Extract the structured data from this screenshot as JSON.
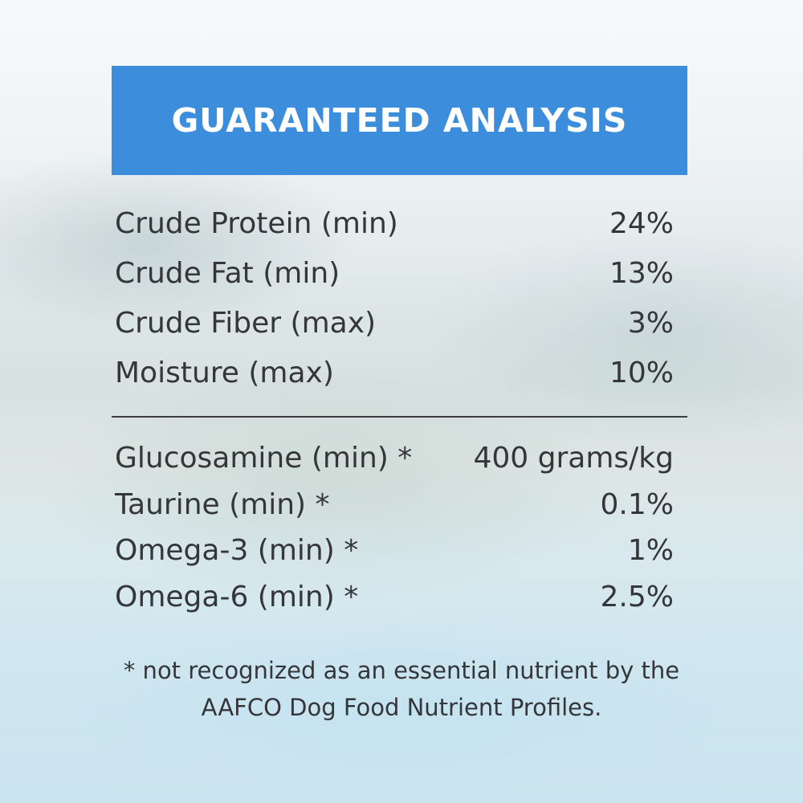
{
  "header": {
    "title": "GUARANTEED ANALYSIS",
    "background_color": "#3d8ddd"
  },
  "analysis": [
    {
      "label": "Crude Protein  (min)",
      "value": "24%"
    },
    {
      "label": "Crude Fat  (min)",
      "value": "13%"
    },
    {
      "label": "Crude Fiber (max)",
      "value": "3%"
    },
    {
      "label": "Moisture (max)",
      "value": "10%"
    }
  ],
  "supplements": [
    {
      "label": "Glucosamine (min) *",
      "value": "400 grams/kg"
    },
    {
      "label": "Taurine (min) *",
      "value": "0.1%"
    },
    {
      "label": "Omega-3 (min) *",
      "value": "1%"
    },
    {
      "label": "Omega-6 (min) *",
      "value": "2.5%"
    }
  ],
  "footnote": {
    "line1": "* not recognized as an essential nutrient by the",
    "line2": "AAFCO Dog Food Nutrient Profiles."
  }
}
